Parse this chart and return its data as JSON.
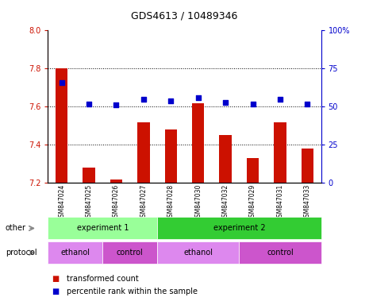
{
  "title": "GDS4613 / 10489346",
  "samples": [
    "GSM847024",
    "GSM847025",
    "GSM847026",
    "GSM847027",
    "GSM847028",
    "GSM847030",
    "GSM847032",
    "GSM847029",
    "GSM847031",
    "GSM847033"
  ],
  "transformed_count": [
    7.8,
    7.28,
    7.22,
    7.52,
    7.48,
    7.62,
    7.45,
    7.33,
    7.52,
    7.38
  ],
  "percentile_rank": [
    66,
    52,
    51,
    55,
    54,
    56,
    53,
    52,
    55,
    52
  ],
  "ylim_left": [
    7.2,
    8.0
  ],
  "ylim_right": [
    0,
    100
  ],
  "yticks_left": [
    7.2,
    7.4,
    7.6,
    7.8,
    8.0
  ],
  "yticks_right": [
    0,
    25,
    50,
    75,
    100
  ],
  "bar_color": "#cc1100",
  "dot_color": "#0000cc",
  "experiment1_color": "#99ff99",
  "experiment2_color": "#33cc33",
  "ethanol_color": "#dd88ee",
  "control_color": "#cc55cc",
  "experiment1_label": "experiment 1",
  "experiment2_label": "experiment 2",
  "ethanol_label": "ethanol",
  "control_label": "control",
  "other_label": "other",
  "protocol_label": "protocol",
  "legend_bar_label": "transformed count",
  "legend_dot_label": "percentile rank within the sample"
}
